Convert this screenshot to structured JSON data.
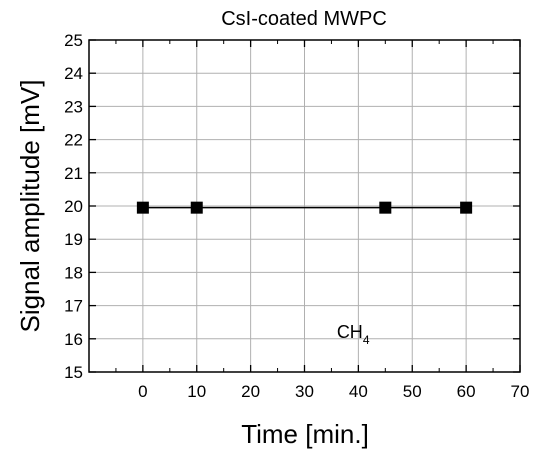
{
  "chart_data": {
    "type": "line",
    "title": "CsI-coated MWPC",
    "xlabel": "Time [min.]",
    "ylabel": "Signal amplitude [mV]",
    "xlim": [
      -10,
      70
    ],
    "ylim": [
      15,
      25
    ],
    "xticks": [
      0,
      10,
      20,
      30,
      40,
      50,
      60,
      70
    ],
    "yticks": [
      15,
      16,
      17,
      18,
      19,
      20,
      21,
      22,
      23,
      24,
      25
    ],
    "grid": true,
    "marker": "square",
    "series": [
      {
        "x": [
          0,
          10,
          45,
          60
        ],
        "y": [
          19.95,
          19.95,
          19.95,
          19.95
        ]
      }
    ],
    "annotation": {
      "text": "CH",
      "subscript": "4",
      "x": 36,
      "y": 16.2
    }
  }
}
